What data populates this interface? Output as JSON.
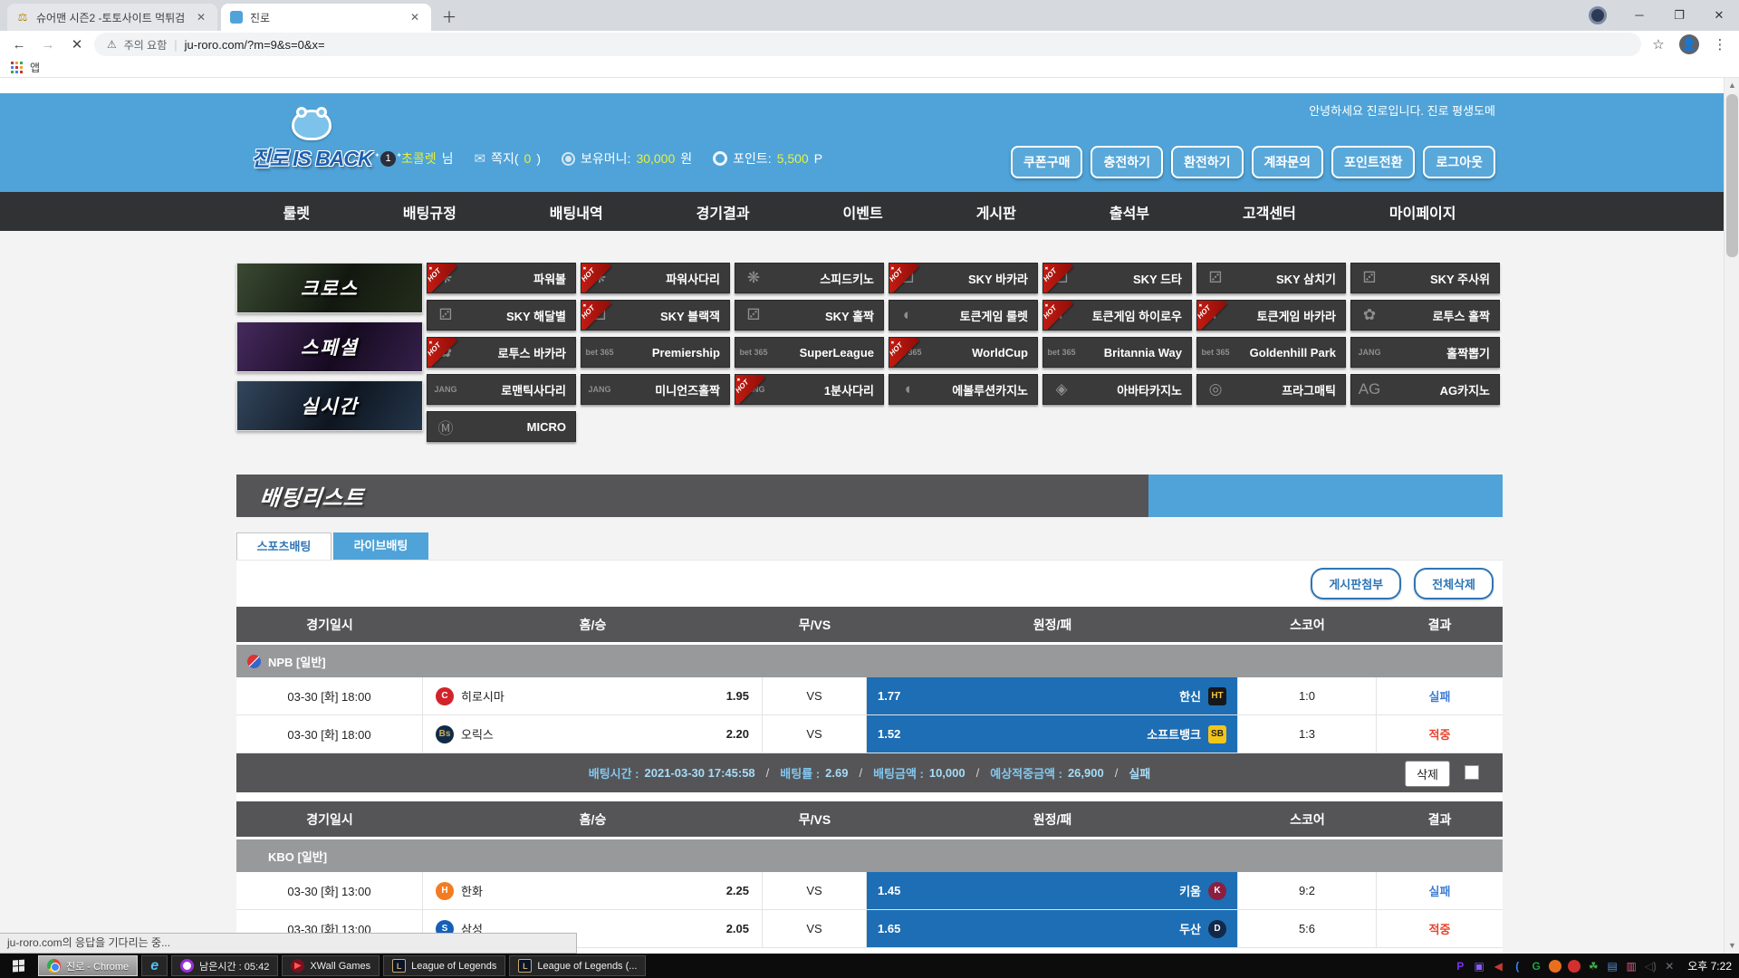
{
  "browser": {
    "tabs": [
      {
        "title": "슈어맨 시즌2 -토토사이트 먹튀검",
        "active": false
      },
      {
        "title": "진로",
        "active": true
      }
    ],
    "stop_icon": "✕",
    "url_warning": "주의 요함",
    "url": "ju-roro.com/?m=9&s=0&x=",
    "bookmarks_label": "앱"
  },
  "header": {
    "welcome": "안녕하세요 진로입니다. 진로 평생도메",
    "logo_text": "진로 IS BACK",
    "user": {
      "level": "1",
      "name": "초콜렛",
      "name_suffix": "님",
      "message_label": "쪽지(",
      "message_count": "0",
      "message_close": ")",
      "money_label": "보유머니:",
      "money": "30,000",
      "money_unit": "원",
      "point_label": "포인트:",
      "point": "5,500",
      "point_unit": "P"
    },
    "buttons": [
      "쿠폰구매",
      "충전하기",
      "환전하기",
      "계좌문의",
      "포인트전환",
      "로그아웃"
    ],
    "accent": "#4fa3d8"
  },
  "nav": [
    "룰렛",
    "배팅규정",
    "배팅내역",
    "경기결과",
    "이벤트",
    "게시판",
    "출석부",
    "고객센터",
    "마이페이지"
  ],
  "banners": [
    "크로스",
    "스페셜",
    "실시간"
  ],
  "games": [
    [
      {
        "label": "파워볼",
        "hot": true,
        "glyph": "❋"
      },
      {
        "label": "파워사다리",
        "hot": true,
        "glyph": "❋"
      },
      {
        "label": "스피드키노",
        "hot": false,
        "glyph": "❋"
      },
      {
        "label": "SKY 바카라",
        "hot": true,
        "glyph": "⚂"
      },
      {
        "label": "SKY 드타",
        "hot": true,
        "glyph": "⚂"
      },
      {
        "label": "SKY 삼치기",
        "hot": false,
        "glyph": "⚂"
      },
      {
        "label": "SKY 주사위",
        "hot": false,
        "glyph": "⚂"
      }
    ],
    [
      {
        "label": "SKY 해달별",
        "hot": false,
        "glyph": "⚂"
      },
      {
        "label": "SKY 블랙잭",
        "hot": true,
        "glyph": "⚂"
      },
      {
        "label": "SKY 홀짝",
        "hot": false,
        "glyph": "⚂"
      },
      {
        "label": "토큰게임 룰렛",
        "hot": false,
        "glyph": "◐"
      },
      {
        "label": "토큰게임 하이로우",
        "hot": true,
        "glyph": "◐"
      },
      {
        "label": "토큰게임 바카라",
        "hot": true,
        "glyph": "◐"
      },
      {
        "label": "로투스 홀짝",
        "hot": false,
        "glyph": "✿"
      }
    ],
    [
      {
        "label": "로투스 바카라",
        "hot": true,
        "glyph": "✿"
      },
      {
        "label": "Premiership",
        "hot": false,
        "glyph": "bet 365"
      },
      {
        "label": "SuperLeague",
        "hot": false,
        "glyph": "bet 365"
      },
      {
        "label": "WorldCup",
        "hot": true,
        "glyph": "bet 365"
      },
      {
        "label": "Britannia Way",
        "hot": false,
        "glyph": "bet 365"
      },
      {
        "label": "Goldenhill Park",
        "hot": false,
        "glyph": "bet 365"
      },
      {
        "label": "홀짝뽑기",
        "hot": false,
        "glyph": "JANG"
      }
    ],
    [
      {
        "label": "로맨틱사다리",
        "hot": false,
        "glyph": "JANG"
      },
      {
        "label": "미니언즈홀짝",
        "hot": false,
        "glyph": "JANG"
      },
      {
        "label": "1분사다리",
        "hot": true,
        "glyph": "JANG"
      },
      {
        "label": "에볼루션카지노",
        "hot": false,
        "glyph": "◖"
      },
      {
        "label": "아바타카지노",
        "hot": false,
        "glyph": "◈"
      },
      {
        "label": "프라그매틱",
        "hot": false,
        "glyph": "◎"
      },
      {
        "label": "AG카지노",
        "hot": false,
        "glyph": "AG"
      }
    ],
    [
      {
        "label": "MICRO",
        "hot": false,
        "glyph": "Ⓜ"
      }
    ]
  ],
  "betting": {
    "title": "배팅리스트",
    "tabs": [
      "스포츠배팅",
      "라이브배팅"
    ],
    "actions": [
      "게시판첨부",
      "전체삭제"
    ],
    "columns": [
      "경기일시",
      "홈/승",
      "무/VS",
      "원정/패",
      "스코어",
      "결과"
    ],
    "pick_color": "#1d6eb4",
    "tables": [
      {
        "league": "NPB [일반]",
        "league_icon": "npb",
        "rows": [
          {
            "date": "03-30 [화] 18:00",
            "home": "히로시마",
            "home_logo": {
              "text": "C",
              "bg": "#d2232a",
              "color": "#ffffff",
              "shape": "circle"
            },
            "home_odds": "1.95",
            "vs": "VS",
            "away_odds": "1.77",
            "away": "한신",
            "away_logo": {
              "text": "HT",
              "bg": "#17181c",
              "color": "#f0c43c",
              "shape": "square"
            },
            "score": "1:0",
            "result": "실패",
            "result_color": "#3f7ed5"
          },
          {
            "date": "03-30 [화] 18:00",
            "home": "오릭스",
            "home_logo": {
              "text": "Bs",
              "bg": "#112a46",
              "color": "#c9ab61",
              "shape": "circle"
            },
            "home_odds": "2.20",
            "vs": "VS",
            "away_odds": "1.52",
            "away": "소프트뱅크",
            "away_logo": {
              "text": "SB",
              "bg": "#f3c518",
              "color": "#222222",
              "shape": "square"
            },
            "score": "1:3",
            "result": "적중",
            "result_color": "#e8432e"
          }
        ],
        "summary": {
          "parts": [
            {
              "label": "배팅시간",
              "value": "2021-03-30 17:45:58"
            },
            {
              "label": "배팅률",
              "value": "2.69"
            },
            {
              "label": "배팅금액",
              "value": "10,000"
            },
            {
              "label": "예상적중금액",
              "value": "26,900"
            }
          ],
          "status": "실패",
          "delete_label": "삭제"
        }
      },
      {
        "league": "KBO [일반]",
        "league_icon": "kbo",
        "rows": [
          {
            "date": "03-30 [화] 13:00",
            "home": "한화",
            "home_logo": {
              "text": "H",
              "bg": "#f47b20",
              "color": "#ffffff",
              "shape": "circle"
            },
            "home_odds": "2.25",
            "vs": "VS",
            "away_odds": "1.45",
            "away": "키움",
            "away_logo": {
              "text": "K",
              "bg": "#8b1f41",
              "color": "#ffffff",
              "shape": "circle"
            },
            "score": "9:2",
            "result": "실패",
            "result_color": "#3f7ed5"
          },
          {
            "date": "03-30 [화] 13:00",
            "home": "삼성",
            "home_logo": {
              "text": "S",
              "bg": "#1560b7",
              "color": "#ffffff",
              "shape": "circle"
            },
            "home_odds": "2.05",
            "vs": "VS",
            "away_odds": "1.65",
            "away": "두산",
            "away_logo": {
              "text": "D",
              "bg": "#13294b",
              "color": "#ffffff",
              "shape": "circle"
            },
            "score": "5:6",
            "result": "적중",
            "result_color": "#e8432e"
          }
        ],
        "summary": null
      }
    ]
  },
  "statusbar": "ju-roro.com의 응답을 기다리는 중...",
  "taskbar": {
    "windows": [
      {
        "icon": "chrome",
        "label": "진로 - Chrome",
        "active": true
      },
      {
        "icon": "ie",
        "label": "",
        "active": false
      },
      {
        "icon": "timer",
        "label": "남은시간 : 05:42",
        "active": false
      },
      {
        "icon": "xwall",
        "label": "XWall Games",
        "active": false
      },
      {
        "icon": "lol",
        "label": "League of Legends",
        "active": false
      },
      {
        "icon": "lol",
        "label": "League of Legends (...",
        "active": false
      }
    ],
    "tray": [
      {
        "glyph": "P",
        "color": "#7b2ff2"
      },
      {
        "glyph": "▣",
        "color": "#8b5cf6"
      },
      {
        "glyph": "◀",
        "color": "#c43a2f"
      },
      {
        "glyph": "(",
        "color": "#3b82f6"
      },
      {
        "glyph": "G",
        "color": "#22a04a"
      },
      {
        "glyph": "●",
        "color": "#e96f1f"
      },
      {
        "glyph": "●",
        "color": "#d32f2f"
      },
      {
        "glyph": "☘",
        "color": "#3fae49"
      },
      {
        "glyph": "▤",
        "color": "#4f8fd0"
      },
      {
        "glyph": "▥",
        "color": "#e05c8a"
      },
      {
        "glyph": "◁)",
        "color": "#444444"
      },
      {
        "glyph": "✕",
        "color": "#6b7280"
      }
    ],
    "clock": "오후 7:22"
  }
}
